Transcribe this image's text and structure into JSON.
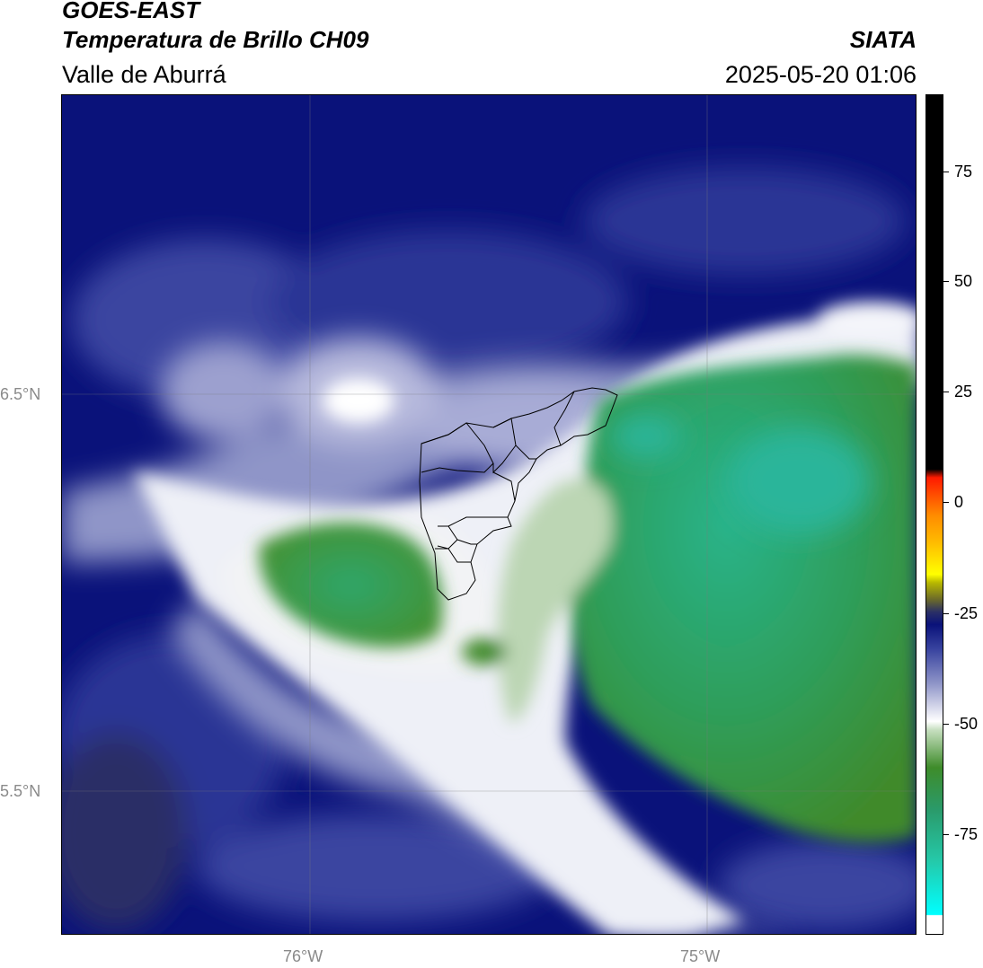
{
  "header": {
    "satellite": "GOES-EAST",
    "product": "Temperatura de Brillo CH09",
    "region": "Valle de Aburrá",
    "organization": "SIATA",
    "timestamp": "2025-05-20 01:06"
  },
  "map": {
    "latitude_labels": [
      "6.5°N",
      "5.5°N"
    ],
    "longitude_labels": [
      "76°W",
      "75°W"
    ]
  },
  "colorbar": {
    "tick_labels": [
      "75",
      "50",
      "25",
      "0",
      "-25",
      "-50",
      "-75"
    ],
    "colors": {
      "deep_cold": "#00ffff",
      "teal": "#2bb38a",
      "green": "#3e8c2a",
      "white": "#ffffff",
      "blue": "#3a45a0",
      "navy": "#0a127a",
      "yellow": "#ffff00",
      "orange": "#ff8c00",
      "red": "#ff1a00",
      "black": "#000000"
    }
  }
}
